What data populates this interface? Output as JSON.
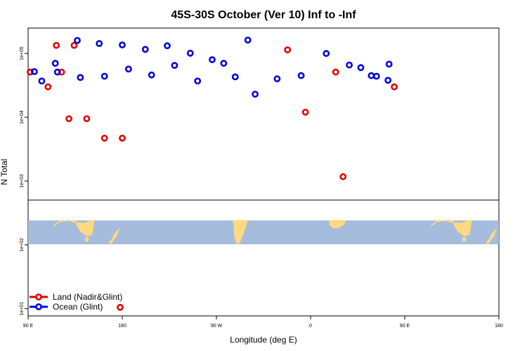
{
  "chart_data": {
    "type": "scatter",
    "title": "45S-30S October (Ver 10)   Inf to -Inf",
    "xlabel": "Longitude (deg E)",
    "ylabel": "N Total",
    "y_scale": "log",
    "ylim": [
      7.7,
      250000
    ],
    "x_ticks": [
      "90 E",
      "180",
      "90 W",
      "0",
      "90 E",
      "180"
    ],
    "y_ticks": [
      "1e+01",
      "1e+02",
      "1e+03",
      "1e+04",
      "1e+05"
    ],
    "series": [
      {
        "name": "Land (Nadir&Glint)",
        "color": "#e00000",
        "points": [
          [
            80,
            30000
          ],
          [
            92,
            51000
          ],
          [
            117,
            134000
          ],
          [
            129,
            9500
          ],
          [
            163,
            4700
          ],
          [
            178,
            10.5
          ],
          [
            338,
            114000
          ],
          [
            355,
            12000
          ],
          [
            24,
            51000
          ],
          [
            31,
            1170
          ],
          [
            109,
            30000
          ],
          [
            122,
            51000
          ],
          [
            134,
            134000
          ],
          [
            146,
            9500
          ],
          [
            180,
            4700
          ]
        ]
      },
      {
        "name": "Ocean (Glint)",
        "color": "#0000e0",
        "points": [
          [
            48,
            60000
          ],
          [
            63,
            44000
          ],
          [
            75,
            68000
          ],
          [
            103,
            37000
          ],
          [
            116,
            70000
          ],
          [
            137,
            160000
          ],
          [
            158,
            143000
          ],
          [
            180,
            136000
          ],
          [
            202,
            116000
          ],
          [
            223,
            132000
          ],
          [
            245,
            101000
          ],
          [
            266,
            80000
          ],
          [
            288,
            43000
          ],
          [
            307,
            23000
          ],
          [
            328,
            40000
          ],
          [
            351,
            45000
          ],
          [
            375,
            100000
          ],
          [
            397,
            66000
          ],
          [
            418,
            45000
          ],
          [
            434,
            38000
          ],
          [
            456,
            52000
          ],
          [
            478,
            51000
          ],
          [
            500,
            42000
          ],
          [
            523,
            44000
          ],
          [
            546,
            57000
          ],
          [
            568,
            46000
          ],
          [
            590,
            65000
          ],
          [
            612,
            37000
          ],
          [
            637,
            70000
          ],
          [
            660,
            162000
          ]
        ]
      }
    ]
  }
}
